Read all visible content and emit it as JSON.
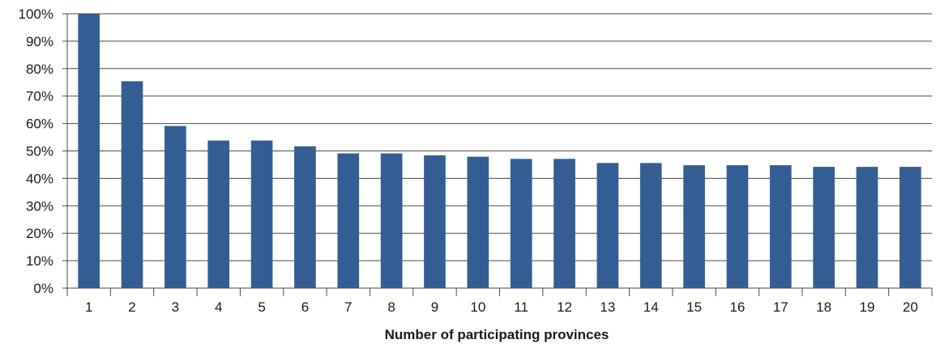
{
  "chart_data": {
    "type": "bar",
    "title": "",
    "xlabel": "Number of participating provinces",
    "ylabel": "",
    "categories": [
      "1",
      "2",
      "3",
      "4",
      "5",
      "6",
      "7",
      "8",
      "9",
      "10",
      "11",
      "12",
      "13",
      "14",
      "15",
      "16",
      "17",
      "18",
      "19",
      "20"
    ],
    "values": [
      100,
      75.4,
      59.1,
      53.8,
      53.8,
      51.7,
      49.1,
      49.1,
      48.4,
      47.9,
      47.1,
      47.1,
      45.6,
      45.6,
      44.8,
      44.8,
      44.8,
      44.2,
      44.2,
      44.2
    ],
    "ylim": [
      0,
      100
    ],
    "yticks": [
      0,
      10,
      20,
      30,
      40,
      50,
      60,
      70,
      80,
      90,
      100
    ],
    "ytick_labels": [
      "0%",
      "10%",
      "20%",
      "30%",
      "40%",
      "50%",
      "60%",
      "70%",
      "80%",
      "90%",
      "100%"
    ],
    "grid": true,
    "legend": "none",
    "colors": {
      "bar": "#345e93",
      "grid": "#4a4a4a",
      "axis": "#4a4a4a",
      "text": "#1a1a1a"
    }
  }
}
